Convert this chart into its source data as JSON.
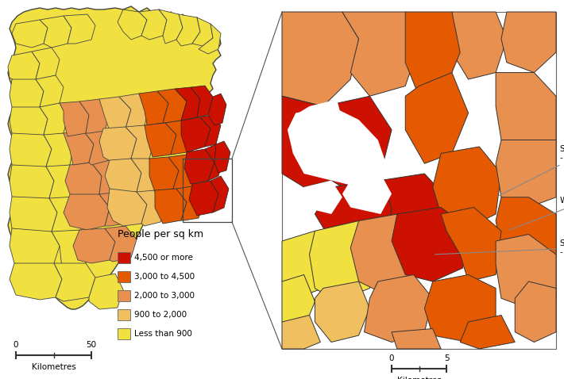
{
  "colors": {
    "density_1": "#cc1100",
    "density_2": "#e55a00",
    "density_3": "#e89050",
    "density_4": "#f0c060",
    "density_5": "#f0e040",
    "border": "#333333",
    "background": "#ffffff",
    "scalebar": "#333333"
  },
  "legend": {
    "title": "People per sq km",
    "items": [
      {
        "label": "4,500 or more",
        "color": "#cc1100"
      },
      {
        "label": "3,000 to 4,500",
        "color": "#e55a00"
      },
      {
        "label": "2,000 to 3,000",
        "color": "#e89050"
      },
      {
        "label": "900 to 2,000",
        "color": "#f0c060"
      },
      {
        "label": "Less than 900",
        "color": "#f0e040"
      }
    ]
  },
  "fig_width": 7.1,
  "fig_height": 4.78,
  "dpi": 100
}
